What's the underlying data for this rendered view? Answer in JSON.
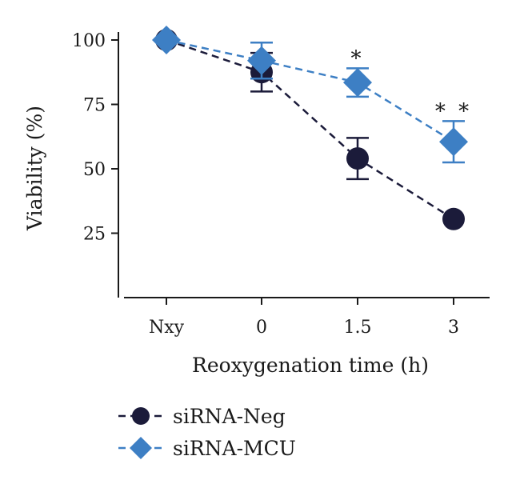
{
  "chart_data": {
    "type": "line",
    "title": "",
    "xlabel": "Reoxygenation time (h)",
    "ylabel": "Viability (%)",
    "categories": [
      "Nxy",
      "0",
      "1.5",
      "3"
    ],
    "ylim": [
      0,
      100
    ],
    "yticks": [
      25,
      50,
      75,
      100
    ],
    "grid": false,
    "legend_position": "bottom-left",
    "series": [
      {
        "name": "siRNA-Neg",
        "marker": "circle",
        "color": "#1b1b3a",
        "values": [
          100,
          87.5,
          54,
          30.5
        ],
        "errors": [
          0,
          7.5,
          8,
          0
        ]
      },
      {
        "name": "siRNA-MCU",
        "marker": "diamond",
        "color": "#3d7fc4",
        "values": [
          100,
          92,
          83.5,
          60.5
        ],
        "errors": [
          0,
          7,
          5.5,
          8
        ]
      }
    ],
    "annotations": [
      {
        "category": "1.5",
        "text": "*"
      },
      {
        "category": "3",
        "text": "**"
      }
    ]
  }
}
